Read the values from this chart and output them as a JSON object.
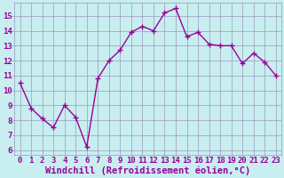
{
  "x": [
    0,
    1,
    2,
    3,
    4,
    5,
    6,
    7,
    8,
    9,
    10,
    11,
    12,
    13,
    14,
    15,
    16,
    17,
    18,
    19,
    20,
    21,
    22,
    23
  ],
  "y": [
    10.5,
    8.8,
    8.1,
    7.5,
    9.0,
    8.2,
    6.2,
    10.8,
    12.0,
    12.7,
    13.9,
    14.3,
    14.0,
    15.2,
    15.5,
    13.6,
    13.9,
    13.1,
    13.0,
    13.0,
    11.8,
    12.5,
    11.9,
    11.0
  ],
  "line_color": "#990099",
  "marker": "+",
  "background_color": "#c8eef0",
  "grid_color": "#9999bb",
  "xlabel": "Windchill (Refroidissement éolien,°C)",
  "xlabel_color": "#990099",
  "ylabel_ticks": [
    6,
    7,
    8,
    9,
    10,
    11,
    12,
    13,
    14,
    15
  ],
  "xlim": [
    -0.5,
    23.5
  ],
  "ylim": [
    5.7,
    15.9
  ],
  "tick_label_color": "#990099",
  "tick_fontsize": 6.5,
  "xlabel_fontsize": 7.5
}
